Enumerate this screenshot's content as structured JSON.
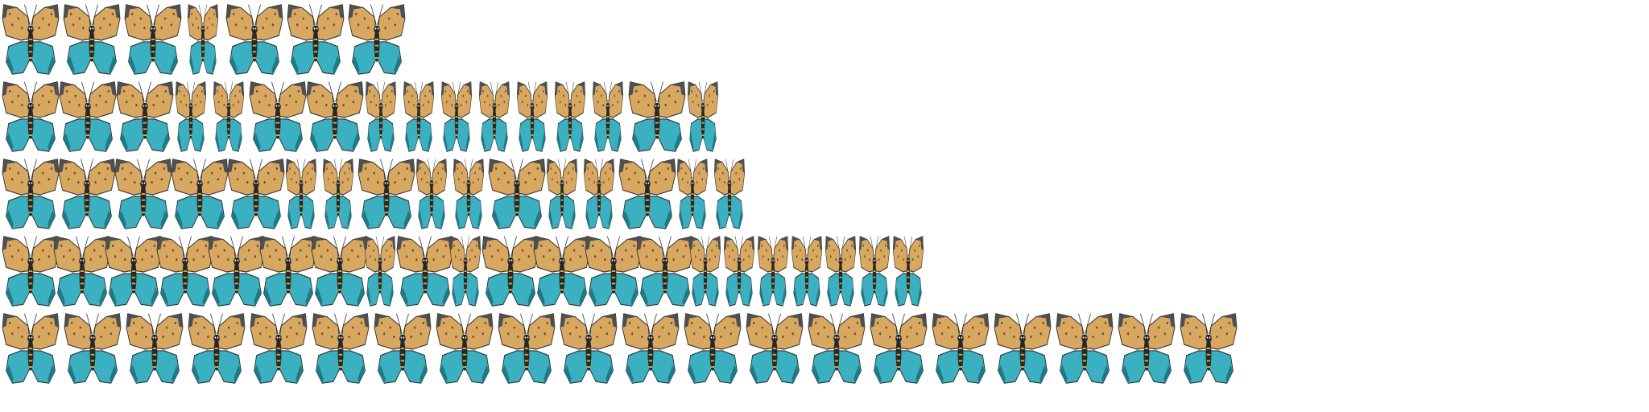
{
  "sprite_sheet": {
    "subject": "butterfly-sprite",
    "colors": {
      "wing_upper": "#d8a860",
      "wing_upper_edge": "#505050",
      "wing_lower": "#3ab0c0",
      "wing_lower_dark": "#1e7a88",
      "body": "#282828",
      "body_mark": "#c8b040",
      "outline": "#303030",
      "background": "#ffffff"
    },
    "rows": [
      {
        "frame_count": 7
      },
      {
        "frame_count": 16
      },
      {
        "frame_count": 16
      },
      {
        "frame_count": 21
      },
      {
        "frame_count": 20
      }
    ]
  }
}
